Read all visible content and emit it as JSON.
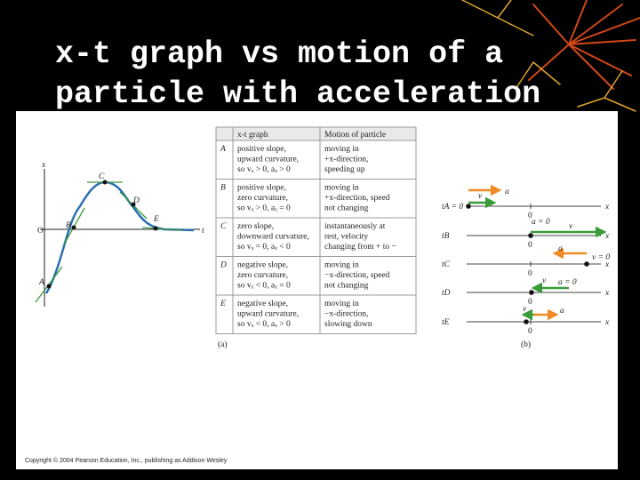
{
  "title": [
    "x-t graph vs motion of a",
    "particle with acceleration"
  ],
  "graph": {
    "axis_x": "x",
    "axis_t": "t",
    "origin": "O",
    "points": [
      "A",
      "B",
      "C",
      "D",
      "E"
    ],
    "caption": "(a)"
  },
  "table": {
    "header": [
      "x-t graph",
      "Motion of particle"
    ],
    "rows": [
      {
        "label": "A",
        "graph": [
          "positive slope,",
          "upward curvature,",
          "so vₓ > 0, aₓ > 0"
        ],
        "motion": [
          "moving in",
          "+x-direction,",
          "speeding up"
        ]
      },
      {
        "label": "B",
        "graph": [
          "positive slope,",
          "zero curvature,",
          "so vₓ > 0, aₓ = 0"
        ],
        "motion": [
          "moving in",
          "+x-direction, speed",
          "not changing"
        ]
      },
      {
        "label": "C",
        "graph": [
          "zero slope,",
          "downward curvature,",
          "so vₓ = 0, aₓ < 0"
        ],
        "motion": [
          "instantaneously at",
          "rest, velocity",
          "changing from + to −"
        ]
      },
      {
        "label": "D",
        "graph": [
          "negative slope,",
          "zero curvature,",
          "so vₓ < 0, aₓ = 0"
        ],
        "motion": [
          "moving in",
          "−x-direction, speed",
          "not changing"
        ]
      },
      {
        "label": "E",
        "graph": [
          "negative slope,",
          "upward curvature,",
          "so vₓ < 0, aₓ > 0"
        ],
        "motion": [
          "moving in",
          "−x-direction,",
          "slowing down"
        ]
      }
    ]
  },
  "motion": {
    "caption": "(b)",
    "rows": [
      {
        "time": "tA = 0",
        "zero": "0",
        "axis": "x",
        "labels": [
          "v",
          "a"
        ]
      },
      {
        "time": "tB",
        "zero": "0",
        "axis": "x",
        "labels": [
          "v",
          "a = 0"
        ]
      },
      {
        "time": "tC",
        "zero": "0",
        "axis": "x",
        "labels": [
          "a",
          "v = 0"
        ]
      },
      {
        "time": "tD",
        "zero": "0",
        "axis": "x",
        "labels": [
          "v",
          "a = 0"
        ]
      },
      {
        "time": "tE",
        "zero": "0",
        "axis": "x",
        "labels": [
          "v",
          "a"
        ]
      }
    ]
  },
  "copyright": "Copyright © 2004 Pearson Education, Inc., publishing as Addison Wesley"
}
